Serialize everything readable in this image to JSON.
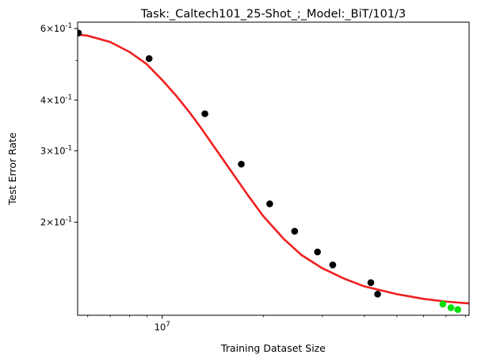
{
  "chart_data": {
    "type": "scatter",
    "title": "Task:_Caltech101_25-Shot_;_Model:_BiT/101/3",
    "xlabel": "Training Dataset Size",
    "ylabel": "Test Error Rate",
    "xscale": "log",
    "yscale": "log",
    "xlim": [
      5600000,
      82000000
    ],
    "ylim": [
      0.118,
      0.622
    ],
    "x_ticks": [
      {
        "value": 10000000,
        "label": "10^7"
      }
    ],
    "y_ticks": [
      {
        "value": 0.6,
        "label": "6×10^-1"
      },
      {
        "value": 0.4,
        "label": "4×10^-1"
      },
      {
        "value": 0.3,
        "label": "3×10^-1"
      },
      {
        "value": 0.2,
        "label": "2×10^-1"
      }
    ],
    "series": [
      {
        "kind": "points",
        "color": "#000000",
        "points": [
          [
            5630000,
            0.585
          ],
          [
            9140000,
            0.506
          ],
          [
            13400000,
            0.37
          ],
          [
            17200000,
            0.278
          ],
          [
            20900000,
            0.222
          ],
          [
            24800000,
            0.19
          ],
          [
            29000000,
            0.169
          ],
          [
            32200000,
            0.157
          ],
          [
            41800000,
            0.142
          ],
          [
            43800000,
            0.133
          ]
        ]
      },
      {
        "kind": "points",
        "color": "#00e000",
        "points": [
          [
            68500000,
            0.1257
          ],
          [
            72400000,
            0.1232
          ],
          [
            75900000,
            0.1219
          ]
        ]
      },
      {
        "kind": "curve",
        "color": "#f02020",
        "points": [
          [
            5600000,
            0.58
          ],
          [
            6000000,
            0.576
          ],
          [
            7000000,
            0.556
          ],
          [
            8000000,
            0.525
          ],
          [
            9000000,
            0.49
          ],
          [
            10000000,
            0.448
          ],
          [
            11000000,
            0.41
          ],
          [
            12000000,
            0.375
          ],
          [
            13000000,
            0.343
          ],
          [
            14000000,
            0.314
          ],
          [
            16000000,
            0.268
          ],
          [
            18000000,
            0.233
          ],
          [
            20000000,
            0.207
          ],
          [
            23000000,
            0.182
          ],
          [
            26000000,
            0.166
          ],
          [
            30000000,
            0.154
          ],
          [
            35000000,
            0.145
          ],
          [
            40000000,
            0.139
          ],
          [
            50000000,
            0.133
          ],
          [
            60000000,
            0.1295
          ],
          [
            70000000,
            0.1275
          ],
          [
            82000000,
            0.1262
          ]
        ]
      }
    ]
  }
}
